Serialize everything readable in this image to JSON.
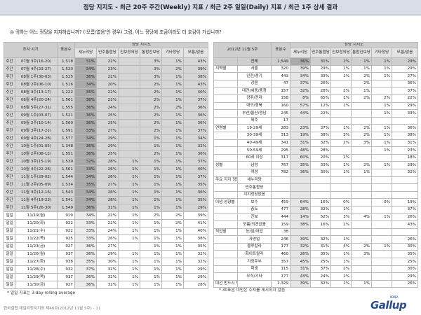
{
  "header": {
    "title": "정당 지지도 - 최근 20주 주간(Weekly) 지표 / 최근 2주 일일(Daily) 지표 / 최근 1주 상세 결과"
  },
  "question": "◎ 귀하는 어느 정당을 지지하십니까? ('모름/없음'인 경우) 그럼, 어느 정당에 조금이라도 더 호감이 가십니까?",
  "left_table": {
    "col_survey": "조사 시기",
    "col_n": "표본수",
    "col_group": "정당 지지도",
    "cols": [
      "새누리당",
      "민주통합당",
      "진보정의당",
      "통합진보당",
      "기타정당",
      "모름/없음"
    ],
    "weekly": [
      {
        "t": "주간",
        "p": "07월 3주(16-20)",
        "n": "1,518",
        "v": [
          "31%",
          "22%",
          "",
          "3%",
          "1%",
          "43%"
        ]
      },
      {
        "t": "주간",
        "p": "07월 4주(23-27)",
        "n": "1,520",
        "v": [
          "34%",
          "23%",
          "",
          "3%",
          "2%",
          "39%"
        ]
      },
      {
        "t": "주간",
        "p": "08월 1주(30-03)",
        "n": "1,525",
        "v": [
          "36%",
          "22%",
          "",
          "3%",
          "1%",
          "38%"
        ]
      },
      {
        "t": "주간",
        "p": "08월 2주(06-10)",
        "n": "1,516",
        "v": [
          "34%",
          "20%",
          "",
          "2%",
          "1%",
          "43%"
        ]
      },
      {
        "t": "주간",
        "p": "08월 3주(13-17)",
        "n": "1,222",
        "v": [
          "35%",
          "22%",
          "",
          "2%",
          "1%",
          "40%"
        ]
      },
      {
        "t": "주간",
        "p": "08월 4주(20-24)",
        "n": "1,561",
        "v": [
          "38%",
          "22%",
          "",
          "2%",
          "1%",
          "37%"
        ]
      },
      {
        "t": "주간",
        "p": "08월 5주(27-31)",
        "n": "1,555",
        "v": [
          "36%",
          "24%",
          "",
          "2%",
          "2%",
          "36%"
        ]
      },
      {
        "t": "주간",
        "p": "09월 1주(03-07)",
        "n": "1,521",
        "v": [
          "36%",
          "25%",
          "",
          "2%",
          "1%",
          "36%"
        ]
      },
      {
        "t": "주간",
        "p": "09월 2주(10-14)",
        "n": "1,560",
        "v": [
          "36%",
          "25%",
          "",
          "2%",
          "1%",
          "36%"
        ]
      },
      {
        "t": "주간",
        "p": "09월 3주(17-21)",
        "n": "1,591",
        "v": [
          "33%",
          "27%",
          "",
          "2%",
          "1%",
          "37%"
        ]
      },
      {
        "t": "주간",
        "p": "09월 4주(24-28)",
        "n": "1,577",
        "v": [
          "34%",
          "29%",
          "",
          "1%",
          "1%",
          "34%"
        ]
      },
      {
        "t": "주간",
        "p": "10월 1주(01-05)",
        "n": "1,348",
        "v": [
          "36%",
          "29%",
          "",
          "1%",
          "1%",
          "32%"
        ]
      },
      {
        "t": "주간",
        "p": "10월 2주(08-12)",
        "n": "1,551",
        "v": [
          "36%",
          "25%",
          "",
          "2%",
          "1%",
          "36%"
        ]
      },
      {
        "t": "주간",
        "p": "10월 3주(15-19)",
        "n": "1,539",
        "v": [
          "32%",
          "28%",
          "1%",
          "1%",
          "1%",
          "37%"
        ]
      },
      {
        "t": "주간",
        "p": "10월 4주(22-26)",
        "n": "1,561",
        "v": [
          "33%",
          "26%",
          "1%",
          "1%",
          "1%",
          "40%"
        ]
      },
      {
        "t": "주간",
        "p": "11월 1주(29-02)",
        "n": "1,544",
        "v": [
          "34%",
          "26%",
          "1%",
          "1%",
          "1%",
          "37%"
        ]
      },
      {
        "t": "주간",
        "p": "11월 2주(05-09)",
        "n": "1,534",
        "v": [
          "35%",
          "27%",
          "1%",
          "1%",
          "1%",
          "35%"
        ]
      },
      {
        "t": "주간",
        "p": "11월 3주(12-16)",
        "n": "1,543",
        "v": [
          "34%",
          "26%",
          "1%",
          "1%",
          "1%",
          "36%"
        ]
      },
      {
        "t": "주간",
        "p": "11월 4주(19-23)",
        "n": "1,541",
        "v": [
          "34%",
          "28%",
          "1%",
          "1%",
          "1%",
          "35%"
        ]
      },
      {
        "t": "주간",
        "p": "11월 5주(26-30)",
        "n": "1,549",
        "v": [
          "36%",
          "31%",
          "1%",
          "1%",
          "1%",
          "29%"
        ]
      }
    ],
    "daily": [
      {
        "t": "일일",
        "p": "11/19(월)",
        "n": "919",
        "v": [
          "34%",
          "22%",
          "1%",
          "2%",
          "2%",
          "39%"
        ]
      },
      {
        "t": "일일",
        "p": "11/20(화)",
        "n": "922",
        "v": [
          "33%",
          "22%",
          "1%",
          "1%",
          "2%",
          "41%"
        ]
      },
      {
        "t": "일일",
        "p": "11/21(수)",
        "n": "922",
        "v": [
          "33%",
          "24%",
          "1%",
          "1%",
          "1%",
          "40%"
        ]
      },
      {
        "t": "일일",
        "p": "11/22(목)",
        "n": "925",
        "v": [
          "33%",
          "26%",
          "1%",
          "1%",
          "1%",
          "38%"
        ]
      },
      {
        "t": "일일",
        "p": "11/23(금)",
        "n": "927",
        "v": [
          "36%",
          "27%",
          "",
          "1%",
          "1%",
          "35%"
        ]
      },
      {
        "t": "일일",
        "p": "11/26(월)",
        "n": "937",
        "v": [
          "36%",
          "29%",
          "1%",
          "1%",
          "1%",
          "32%"
        ]
      },
      {
        "t": "일일",
        "p": "11/27(화)",
        "n": "938",
        "v": [
          "35%",
          "30%",
          "1%",
          "1%",
          "1%",
          "32%"
        ]
      },
      {
        "t": "일일",
        "p": "11/28(수)",
        "n": "932",
        "v": [
          "37%",
          "32%",
          "1%",
          "1%",
          "1%",
          "29%"
        ]
      },
      {
        "t": "일일",
        "p": "11/29(목)",
        "n": "937",
        "v": [
          "36%",
          "32%",
          "1%",
          "1%",
          "1%",
          "29%"
        ]
      },
      {
        "t": "일일",
        "p": "11/30(금)",
        "n": "927",
        "v": [
          "36%",
          "32%",
          "1%",
          "1%",
          "1%",
          "28%"
        ]
      }
    ],
    "note": "* 일일 지표는 3-day-rolling average"
  },
  "right_table": {
    "col_week": "2012년 11월 5주",
    "col_n": "표본수",
    "col_group": "정당 지지도",
    "cols": [
      "새누리당",
      "민주통합당",
      "진보정의당",
      "통합진보당",
      "기타정당",
      "모름/없음"
    ],
    "total": {
      "g": "",
      "s": "전체",
      "n": "1,549",
      "v": [
        "36%",
        "31%",
        "1%",
        "1%",
        "1%",
        "29%"
      ]
    },
    "rows": [
      {
        "g": "지역별",
        "s": "서울",
        "n": "320",
        "v": [
          "39%",
          "29%",
          "1%",
          "1%",
          "1%",
          "29%"
        ]
      },
      {
        "g": "",
        "s": "인천/경기",
        "n": "443",
        "v": [
          "34%",
          "33%",
          "1%",
          "2%",
          "1%",
          "27%"
        ]
      },
      {
        "g": "",
        "s": "강원",
        "n": "47",
        "v": [
          "37%",
          "26%",
          "",
          "2%",
          "",
          "36%"
        ]
      },
      {
        "g": "",
        "s": "대전/세종/충청",
        "n": "157",
        "v": [
          "32%",
          "28%",
          "2%",
          "1%",
          "",
          "37%"
        ]
      },
      {
        "g": "",
        "s": "광주/전라",
        "n": "158",
        "v": [
          "8%",
          "65%",
          "1%",
          "2%",
          "2%",
          "22%"
        ]
      },
      {
        "g": "",
        "s": "대구/경북",
        "n": "160",
        "v": [
          "57%",
          "12%",
          "1%",
          "",
          "1%",
          "29%"
        ]
      },
      {
        "g": "",
        "s": "부산/울산/경남",
        "n": "245",
        "v": [
          "44%",
          "22%",
          "",
          "",
          "1%",
          "33%"
        ]
      },
      {
        "g": "",
        "s": "제주",
        "n": "17",
        "v": [
          "",
          "",
          "",
          "",
          "",
          ""
        ]
      },
      {
        "g": "연령별",
        "s": "19-29세",
        "n": "283",
        "v": [
          "23%",
          "37%",
          "1%",
          "2%",
          "1%",
          "36%"
        ]
      },
      {
        "g": "",
        "s": "30-39세",
        "n": "313",
        "v": [
          "19%",
          "38%",
          "3%",
          "2%",
          "1%",
          "38%"
        ]
      },
      {
        "g": "",
        "s": "40-49세",
        "n": "341",
        "v": [
          "31%",
          "32%",
          "2%",
          "3%",
          "1%",
          "31%"
        ]
      },
      {
        "g": "",
        "s": "50-59세",
        "n": "295",
        "v": [
          "48%",
          "28%",
          "",
          "",
          "1%",
          "23%"
        ]
      },
      {
        "g": "",
        "s": "60세 이상",
        "n": "317",
        "v": [
          "60%",
          "20%",
          "1%",
          "",
          "",
          "18%"
        ]
      },
      {
        "g": "성별",
        "s": "남성",
        "n": "767",
        "v": [
          "35%",
          "33%",
          "1%",
          "2%",
          "1%",
          "29%"
        ]
      },
      {
        "g": "",
        "s": "여성",
        "n": "782",
        "v": [
          "36%",
          "30%",
          "1%",
          "1%",
          "",
          "32%"
        ]
      },
      {
        "g": "주요 지지 정당별",
        "s": "새누리당",
        "n": "",
        "v": [
          "",
          "",
          "",
          "",
          "",
          ""
        ]
      },
      {
        "g": "",
        "s": "민주통합당",
        "n": "",
        "v": [
          "",
          "",
          "",
          "",
          "",
          ""
        ]
      },
      {
        "g": "",
        "s": "지지정당없음",
        "n": "",
        "v": [
          "",
          "",
          "",
          "",
          "",
          ""
        ]
      },
      {
        "g": "이념 성향별",
        "s": "보수",
        "n": "459",
        "v": [
          "64%",
          "16%",
          "0%",
          "",
          "0%",
          "19%"
        ]
      },
      {
        "g": "",
        "s": "중도",
        "n": "477",
        "n2": "",
        "v": [
          "28%",
          "32%",
          "1%",
          "",
          "",
          "37%"
        ]
      },
      {
        "g": "",
        "s": "진보",
        "n": "444",
        "v": [
          "14%",
          "52%",
          "3%",
          "4%",
          "1%",
          "26%"
        ]
      },
      {
        "g": "",
        "s": "모름/의견없음",
        "n": "159",
        "v": [
          "38%",
          "16%",
          "1%",
          "",
          "",
          "43%"
        ]
      },
      {
        "g": "직업별",
        "s": "농/임/어업",
        "n": "38",
        "v": [
          "",
          "",
          "",
          "",
          "",
          ""
        ]
      },
      {
        "g": "",
        "s": "자영업",
        "n": "246",
        "v": [
          "39%",
          "32%",
          "1%",
          "",
          "",
          "26%"
        ]
      },
      {
        "g": "",
        "s": "블루칼라",
        "n": "177",
        "v": [
          "32%",
          "31%",
          "4%",
          "2%",
          "1%",
          "30%"
        ]
      },
      {
        "g": "",
        "s": "화이트칼라",
        "n": "460",
        "v": [
          "26%",
          "35%",
          "1%",
          "3%",
          "",
          "35%"
        ]
      },
      {
        "g": "",
        "s": "가정주부",
        "n": "357",
        "v": [
          "45%",
          "25%",
          "1%",
          "",
          "",
          "25%"
        ]
      },
      {
        "g": "",
        "s": "학생",
        "n": "115",
        "v": [
          "31%",
          "37%",
          "2%",
          "",
          "",
          "30%"
        ]
      },
      {
        "g": "",
        "s": "무직/기타",
        "n": "177",
        "v": [
          "43%",
          "24%",
          "1%",
          "",
          "",
          "29%"
        ]
      },
      {
        "g": "대선 반드시 투표 의향자",
        "s": "",
        "n": "1,329",
        "v": [
          "39%",
          "32%",
          "1%",
          "1%",
          "",
          "26%"
        ]
      }
    ],
    "note": "* 30표본 미만은 수치를 게시하지 않음"
  },
  "footer": "한국갤럽 데일리정치지표 제46호(2012년 11월 5주) - 11",
  "logo": {
    "text": "Gallup",
    "sub": "KOREA"
  }
}
